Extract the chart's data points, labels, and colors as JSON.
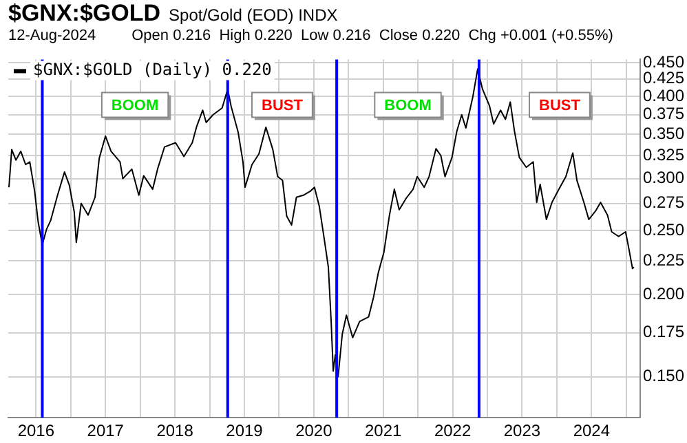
{
  "chart_data": {
    "type": "line",
    "title": "$GNX:$GOLD",
    "subtitle": "Spot/Gold (EOD) INDX",
    "annotations": [
      "12-Aug-2024",
      "Open 0.216  High 0.220  Low 0.216  Close 0.220  Chg +0.001 (+0.55%)",
      "BOOM",
      "BUST",
      "BOOM",
      "BUST"
    ],
    "series": [
      {
        "name": "$GNX:$GOLD (Daily) 0.220",
        "color": "#000000",
        "x": [
          2015.61,
          2015.65,
          2015.71,
          2015.78,
          2015.85,
          2015.91,
          2015.98,
          2016.03,
          2016.09,
          2016.15,
          2016.21,
          2016.31,
          2016.41,
          2016.48,
          2016.55,
          2016.58,
          2016.65,
          2016.75,
          2016.85,
          2016.91,
          2017.0,
          2017.08,
          2017.21,
          2017.25,
          2017.38,
          2017.48,
          2017.55,
          2017.68,
          2017.75,
          2017.85,
          2018.01,
          2018.13,
          2018.25,
          2018.31,
          2018.4,
          2018.45,
          2018.55,
          2018.68,
          2018.76,
          2018.81,
          2018.91,
          2018.98,
          2019.01,
          2019.11,
          2019.21,
          2019.31,
          2019.41,
          2019.48,
          2019.55,
          2019.61,
          2019.68,
          2019.75,
          2019.85,
          2019.95,
          2020.01,
          2020.08,
          2020.15,
          2020.21,
          2020.25,
          2020.28,
          2020.31,
          2020.35,
          2020.41,
          2020.47,
          2020.56,
          2020.66,
          2020.79,
          2020.86,
          2020.93,
          2021.01,
          2021.09,
          2021.16,
          2021.23,
          2021.33,
          2021.43,
          2021.49,
          2021.59,
          2021.66,
          2021.76,
          2021.83,
          2021.89,
          2021.99,
          2022.06,
          2022.13,
          2022.19,
          2022.29,
          2022.36,
          2022.43,
          2022.53,
          2022.59,
          2022.69,
          2022.76,
          2022.83,
          2022.89,
          2022.96,
          2023.06,
          2023.16,
          2023.21,
          2023.26,
          2023.35,
          2023.43,
          2023.53,
          2023.63,
          2023.73,
          2023.79,
          2023.89,
          2023.96,
          2024.06,
          2024.13,
          2024.23,
          2024.29,
          2024.39,
          2024.49,
          2024.53,
          2024.59,
          2024.61
        ],
        "values": [
          0.291,
          0.332,
          0.32,
          0.33,
          0.315,
          0.318,
          0.287,
          0.258,
          0.238,
          0.251,
          0.259,
          0.283,
          0.307,
          0.293,
          0.267,
          0.24,
          0.275,
          0.264,
          0.281,
          0.322,
          0.348,
          0.33,
          0.318,
          0.3,
          0.31,
          0.283,
          0.303,
          0.289,
          0.31,
          0.335,
          0.34,
          0.324,
          0.34,
          0.359,
          0.381,
          0.365,
          0.375,
          0.384,
          0.41,
          0.386,
          0.353,
          0.318,
          0.291,
          0.315,
          0.327,
          0.359,
          0.332,
          0.302,
          0.298,
          0.263,
          0.255,
          0.281,
          0.283,
          0.287,
          0.291,
          0.272,
          0.243,
          0.22,
          0.182,
          0.153,
          0.162,
          0.15,
          0.174,
          0.186,
          0.172,
          0.182,
          0.185,
          0.198,
          0.216,
          0.232,
          0.264,
          0.289,
          0.269,
          0.28,
          0.289,
          0.302,
          0.291,
          0.302,
          0.333,
          0.325,
          0.302,
          0.323,
          0.354,
          0.375,
          0.358,
          0.399,
          0.44,
          0.41,
          0.387,
          0.363,
          0.381,
          0.369,
          0.392,
          0.354,
          0.323,
          0.312,
          0.318,
          0.276,
          0.294,
          0.26,
          0.276,
          0.289,
          0.302,
          0.328,
          0.298,
          0.276,
          0.26,
          0.268,
          0.276,
          0.264,
          0.249,
          0.245,
          0.249,
          0.237,
          0.219,
          0.22
        ]
      }
    ],
    "xlim": [
      2015.6,
      2024.7
    ],
    "xticks": [
      2016,
      {
        "value": 2016.5,
        "label": null
      },
      2017,
      {
        "value": 2017.5,
        "label": null
      },
      2018,
      {
        "value": 2018.5,
        "label": null
      },
      2019,
      {
        "value": 2019.5,
        "label": null
      },
      2020,
      {
        "value": 2020.5,
        "label": null
      },
      2021,
      {
        "value": 2021.5,
        "label": null
      },
      2022,
      {
        "value": 2022.5,
        "label": null
      },
      2023,
      {
        "value": 2023.5,
        "label": null
      },
      2024,
      {
        "value": 2024.5,
        "label": null
      }
    ],
    "ylim": [
      0.13,
      0.455
    ],
    "yticks": [
      {
        "value": 0.15,
        "label": "0.150"
      },
      {
        "value": 0.175,
        "label": "0.175"
      },
      {
        "value": 0.2,
        "label": "0.200"
      },
      {
        "value": 0.225,
        "label": "0.225"
      },
      {
        "value": 0.25,
        "label": "0.250"
      },
      {
        "value": 0.275,
        "label": "0.275"
      },
      {
        "value": 0.3,
        "label": "0.300"
      },
      {
        "value": 0.325,
        "label": "0.325"
      },
      {
        "value": 0.35,
        "label": "0.350"
      },
      {
        "value": 0.375,
        "label": "0.375"
      },
      {
        "value": 0.4,
        "label": "0.400"
      },
      {
        "value": 0.425,
        "label": "0.425"
      },
      {
        "value": 0.45,
        "label": "0.450"
      }
    ],
    "log": "y",
    "grid": true,
    "legend": "top left",
    "marker": "none",
    "line_style": "solid",
    "ref_lines": [
      {
        "axis": "x",
        "value": 2016.09,
        "color": "#0000ff"
      },
      {
        "axis": "x",
        "value": 2018.76,
        "color": "#0000ff"
      },
      {
        "axis": "x",
        "value": 2020.33,
        "color": "#0000ff"
      },
      {
        "axis": "x",
        "value": 2022.38,
        "color": "#0000ff"
      }
    ]
  }
}
